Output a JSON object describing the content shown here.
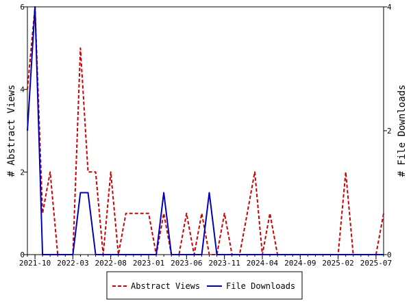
{
  "chart_data": {
    "type": "line",
    "title": "",
    "ylabel_left": "# Abstract Views",
    "ylabel_right": "# File Downloads",
    "ylim_left": [
      0,
      6
    ],
    "ylim_right": [
      0,
      4
    ],
    "yticks_left": [
      "0",
      "2",
      "4",
      "6"
    ],
    "yticks_right": [
      "0",
      "2",
      "4"
    ],
    "x_range": [
      "2021-09",
      "2025-08"
    ],
    "xticks": [
      "2021-10",
      "2022-03",
      "2022-08",
      "2023-01",
      "2023-06",
      "2023-11",
      "2024-04",
      "2024-09",
      "2025-02",
      "2025-07"
    ],
    "legend_position": "bottom",
    "series": [
      {
        "name": "Abstract Views",
        "axis": "left",
        "color": "#cc0000",
        "dash": "dashed",
        "x": [
          "2021-09",
          "2021-10",
          "2021-11",
          "2021-12",
          "2022-01",
          "2022-02",
          "2022-03",
          "2022-04",
          "2022-05",
          "2022-06",
          "2022-07",
          "2022-08",
          "2022-09",
          "2022-10",
          "2022-11",
          "2022-12",
          "2023-01",
          "2023-02",
          "2023-03",
          "2023-04",
          "2023-05",
          "2023-06",
          "2023-07",
          "2023-08",
          "2023-09",
          "2023-10",
          "2023-11",
          "2023-12",
          "2024-01",
          "2024-02",
          "2024-03",
          "2024-04",
          "2024-05",
          "2024-06",
          "2024-07",
          "2024-08",
          "2024-09",
          "2024-10",
          "2024-11",
          "2024-12",
          "2025-01",
          "2025-02",
          "2025-03",
          "2025-04",
          "2025-05",
          "2025-06",
          "2025-07",
          "2025-08"
        ],
        "y": [
          4,
          6,
          1,
          2,
          0,
          0,
          0,
          5,
          2,
          2,
          0,
          2,
          0,
          1,
          1,
          1,
          1,
          0,
          1,
          0,
          0,
          1,
          0,
          1,
          0,
          0,
          1,
          0,
          0,
          1,
          2,
          0,
          1,
          0,
          0,
          0,
          0,
          0,
          0,
          0,
          0,
          0,
          2,
          0,
          0,
          0,
          0,
          1
        ]
      },
      {
        "name": "File Downloads",
        "axis": "right",
        "color": "#0000bb",
        "dash": "solid",
        "x": [
          "2021-09",
          "2021-10",
          "2021-11",
          "2021-12",
          "2022-01",
          "2022-02",
          "2022-03",
          "2022-04",
          "2022-05",
          "2022-06",
          "2022-07",
          "2022-08",
          "2022-09",
          "2022-10",
          "2022-11",
          "2022-12",
          "2023-01",
          "2023-02",
          "2023-03",
          "2023-04",
          "2023-05",
          "2023-06",
          "2023-07",
          "2023-08",
          "2023-09",
          "2023-10",
          "2023-11",
          "2023-12",
          "2024-01",
          "2024-02",
          "2024-03",
          "2024-04",
          "2024-05",
          "2024-06",
          "2024-07",
          "2024-08",
          "2024-09",
          "2024-10",
          "2024-11",
          "2024-12",
          "2025-01",
          "2025-02",
          "2025-03",
          "2025-04",
          "2025-05",
          "2025-06",
          "2025-07",
          "2025-08"
        ],
        "y": [
          2,
          4,
          0,
          0,
          0,
          0,
          0,
          1,
          1,
          0,
          0,
          0,
          0,
          0,
          0,
          0,
          0,
          0,
          1,
          0,
          0,
          0,
          0,
          0,
          1,
          0,
          0,
          0,
          0,
          0,
          0,
          0,
          0,
          0,
          0,
          0,
          0,
          0,
          0,
          0,
          0,
          0,
          0,
          0,
          0,
          0,
          0,
          0
        ]
      }
    ]
  }
}
